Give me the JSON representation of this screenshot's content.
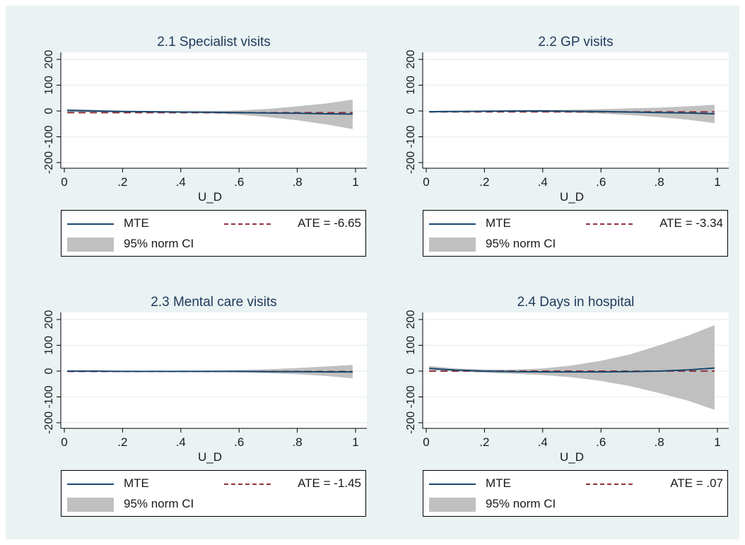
{
  "chart_data": [
    {
      "type": "line",
      "title": "2.1 Specialist visits",
      "xlabel": "U_D",
      "ylabel": "",
      "xlim": [
        0,
        1
      ],
      "ylim": [
        -200,
        200
      ],
      "xticks": [
        0,
        0.2,
        0.4,
        0.6,
        0.8,
        1
      ],
      "xtick_labels": [
        "0",
        ".2",
        ".4",
        ".6",
        ".8",
        "1"
      ],
      "yticks": [
        -200,
        -100,
        0,
        100,
        200
      ],
      "ytick_labels": [
        "-200",
        "-100",
        "0",
        "100",
        "200"
      ],
      "grid": true,
      "legend_position": "bottom",
      "colors": {
        "mte": "#1a476f",
        "ate": "#90353b",
        "ci": "#c0c0c0"
      },
      "x": [
        0.01,
        0.1,
        0.2,
        0.3,
        0.4,
        0.5,
        0.6,
        0.7,
        0.8,
        0.9,
        0.99
      ],
      "series": [
        {
          "name": "MTE",
          "values": [
            2,
            0,
            -2,
            -3,
            -4,
            -5,
            -6,
            -8,
            -9,
            -11,
            -12
          ]
        },
        {
          "name": "95% norm CI",
          "lower": [
            -4,
            -5,
            -5,
            -6,
            -7,
            -9,
            -14,
            -24,
            -36,
            -52,
            -70
          ],
          "upper": [
            8,
            5,
            1,
            0,
            -1,
            -1,
            2,
            8,
            18,
            29,
            44
          ]
        }
      ],
      "ate": -6.65,
      "legend": {
        "mte": "MTE",
        "ate": "ATE = -6.65",
        "ci": "95% norm CI"
      }
    },
    {
      "type": "line",
      "title": "2.2 GP visits",
      "xlabel": "U_D",
      "ylabel": "",
      "xlim": [
        0,
        1
      ],
      "ylim": [
        -200,
        200
      ],
      "xticks": [
        0,
        0.2,
        0.4,
        0.6,
        0.8,
        1
      ],
      "xtick_labels": [
        "0",
        ".2",
        ".4",
        ".6",
        ".8",
        "1"
      ],
      "yticks": [
        -200,
        -100,
        0,
        100,
        200
      ],
      "ytick_labels": [
        "-200",
        "-100",
        "0",
        "100",
        "200"
      ],
      "grid": true,
      "legend_position": "bottom",
      "colors": {
        "mte": "#1a476f",
        "ate": "#90353b",
        "ci": "#c0c0c0"
      },
      "x": [
        0.01,
        0.1,
        0.2,
        0.3,
        0.4,
        0.5,
        0.6,
        0.7,
        0.8,
        0.9,
        0.99
      ],
      "series": [
        {
          "name": "MTE",
          "values": [
            -3,
            -2,
            -1,
            0,
            0,
            -1,
            -2,
            -4,
            -6,
            -8,
            -11
          ]
        },
        {
          "name": "95% norm CI",
          "lower": [
            -5,
            -4,
            -3,
            -3,
            -4,
            -6,
            -10,
            -16,
            -24,
            -34,
            -47
          ],
          "upper": [
            0,
            1,
            2,
            3,
            4,
            5,
            7,
            10,
            13,
            18,
            24
          ]
        }
      ],
      "ate": -3.34,
      "legend": {
        "mte": "MTE",
        "ate": "ATE = -3.34",
        "ci": "95% norm CI"
      }
    },
    {
      "type": "line",
      "title": "2.3 Mental care visits",
      "xlabel": "U_D",
      "ylabel": "",
      "xlim": [
        0,
        1
      ],
      "ylim": [
        -200,
        200
      ],
      "xticks": [
        0,
        0.2,
        0.4,
        0.6,
        0.8,
        1
      ],
      "xtick_labels": [
        "0",
        ".2",
        ".4",
        ".6",
        ".8",
        "1"
      ],
      "yticks": [
        -200,
        -100,
        0,
        100,
        200
      ],
      "ytick_labels": [
        "-200",
        "-100",
        "0",
        "100",
        "200"
      ],
      "grid": true,
      "legend_position": "bottom",
      "colors": {
        "mte": "#1a476f",
        "ate": "#90353b",
        "ci": "#c0c0c0"
      },
      "x": [
        0.01,
        0.1,
        0.2,
        0.3,
        0.4,
        0.5,
        0.6,
        0.7,
        0.8,
        0.9,
        0.99
      ],
      "series": [
        {
          "name": "MTE",
          "values": [
            0,
            0,
            -1,
            -1,
            -1,
            -1,
            -1,
            -2,
            -2,
            -3,
            -3
          ]
        },
        {
          "name": "95% norm CI",
          "lower": [
            -2,
            -2,
            -2,
            -2,
            -3,
            -3,
            -5,
            -8,
            -12,
            -19,
            -28
          ],
          "upper": [
            2,
            2,
            1,
            1,
            1,
            2,
            4,
            7,
            12,
            18,
            24
          ]
        }
      ],
      "ate": -1.45,
      "legend": {
        "mte": "MTE",
        "ate": "ATE = -1.45",
        "ci": "95% norm CI"
      }
    },
    {
      "type": "line",
      "title": "2.4 Days in hospital",
      "xlabel": "U_D",
      "ylabel": "",
      "xlim": [
        0,
        1
      ],
      "ylim": [
        -200,
        200
      ],
      "xticks": [
        0,
        0.2,
        0.4,
        0.6,
        0.8,
        1
      ],
      "xtick_labels": [
        "0",
        ".2",
        ".4",
        ".6",
        ".8",
        "1"
      ],
      "yticks": [
        -200,
        -100,
        0,
        100,
        200
      ],
      "ytick_labels": [
        "-200",
        "-100",
        "0",
        "100",
        "200"
      ],
      "grid": true,
      "legend_position": "bottom",
      "colors": {
        "mte": "#1a476f",
        "ate": "#90353b",
        "ci": "#c0c0c0"
      },
      "x": [
        0.01,
        0.1,
        0.2,
        0.3,
        0.4,
        0.5,
        0.6,
        0.7,
        0.8,
        0.9,
        0.99
      ],
      "series": [
        {
          "name": "MTE",
          "values": [
            10,
            4,
            0,
            -2,
            -3,
            -3,
            -3,
            -2,
            0,
            5,
            12
          ]
        },
        {
          "name": "95% norm CI",
          "lower": [
            4,
            -1,
            -6,
            -10,
            -15,
            -24,
            -38,
            -58,
            -85,
            -115,
            -150
          ],
          "upper": [
            20,
            10,
            6,
            6,
            10,
            22,
            40,
            65,
            100,
            138,
            178
          ]
        }
      ],
      "ate": 0.07,
      "legend": {
        "mte": "MTE",
        "ate": "ATE = .07",
        "ci": "95% norm CI"
      }
    }
  ]
}
